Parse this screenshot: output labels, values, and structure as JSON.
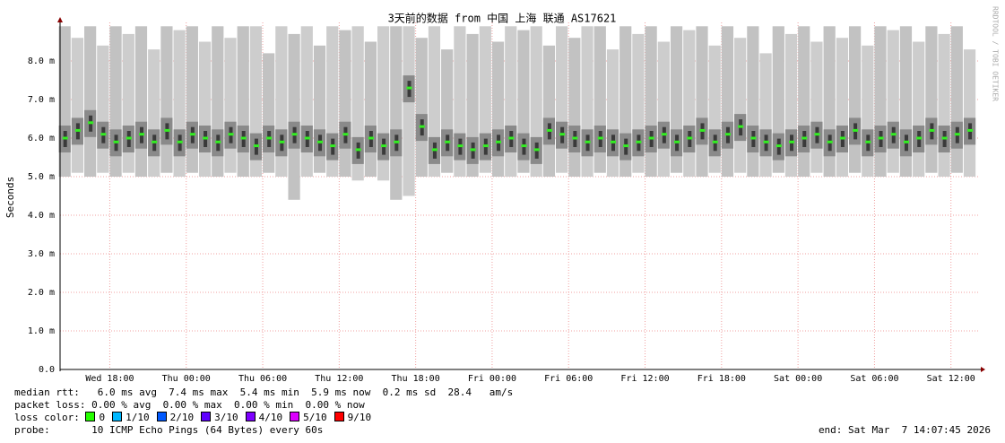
{
  "chart_data": {
    "type": "smoke",
    "title": "3天前的数据 from 中国 上海 联通 AS17621",
    "y_label": "Seconds",
    "watermark": "RRDTOOL / TOBI OETIKER",
    "xlim": [
      14.1,
      86.2
    ],
    "xticks": [
      {
        "value": 18,
        "label": "Wed 18:00"
      },
      {
        "value": 24,
        "label": "Thu 00:00"
      },
      {
        "value": 30,
        "label": "Thu 06:00"
      },
      {
        "value": 36,
        "label": "Thu 12:00"
      },
      {
        "value": 42,
        "label": "Thu 18:00"
      },
      {
        "value": 48,
        "label": "Fri 00:00"
      },
      {
        "value": 54,
        "label": "Fri 06:00"
      },
      {
        "value": 60,
        "label": "Fri 12:00"
      },
      {
        "value": 66,
        "label": "Fri 18:00"
      },
      {
        "value": 72,
        "label": "Sat 00:00"
      },
      {
        "value": 78,
        "label": "Sat 06:00"
      },
      {
        "value": 84,
        "label": "Sat 12:00"
      }
    ],
    "ylim": [
      0,
      9
    ],
    "yticks": [
      {
        "value": 0,
        "label": "0.0"
      },
      {
        "value": 1,
        "label": "1.0 m"
      },
      {
        "value": 2,
        "label": "2.0 m"
      },
      {
        "value": 3,
        "label": "3.0 m"
      },
      {
        "value": 4,
        "label": "4.0 m"
      },
      {
        "value": 5,
        "label": "5.0 m"
      },
      {
        "value": 6,
        "label": "6.0 m"
      },
      {
        "value": 7,
        "label": "7.0 m"
      },
      {
        "value": 8,
        "label": "8.0 m"
      }
    ],
    "grid": true,
    "color": "#33ee22",
    "x": [
      14.5,
      15.5,
      16.5,
      17.5,
      18.5,
      19.5,
      20.5,
      21.5,
      22.5,
      23.5,
      24.5,
      25.5,
      26.5,
      27.5,
      28.5,
      29.5,
      30.5,
      31.5,
      32.5,
      33.5,
      34.5,
      35.5,
      36.5,
      37.5,
      38.5,
      39.5,
      40.5,
      41.5,
      42.5,
      43.5,
      44.5,
      45.5,
      46.5,
      47.5,
      48.5,
      49.5,
      50.5,
      51.5,
      52.5,
      53.5,
      54.5,
      55.5,
      56.5,
      57.5,
      58.5,
      59.5,
      60.5,
      61.5,
      62.5,
      63.5,
      64.5,
      65.5,
      66.5,
      67.5,
      68.5,
      69.5,
      70.5,
      71.5,
      72.5,
      73.5,
      74.5,
      75.5,
      76.5,
      77.5,
      78.5,
      79.5,
      80.5,
      81.5,
      82.5,
      83.5,
      84.5,
      85.5
    ],
    "values": [
      6.0,
      6.2,
      6.4,
      6.1,
      5.9,
      6.0,
      6.1,
      5.9,
      6.2,
      5.9,
      6.1,
      6.0,
      5.9,
      6.1,
      6.0,
      5.8,
      6.0,
      5.9,
      6.1,
      6.0,
      5.9,
      5.8,
      6.1,
      5.7,
      6.0,
      5.8,
      5.9,
      7.3,
      6.3,
      5.7,
      5.9,
      5.8,
      5.7,
      5.8,
      5.9,
      6.0,
      5.8,
      5.7,
      6.2,
      6.1,
      6.0,
      5.9,
      6.0,
      5.9,
      5.8,
      5.9,
      6.0,
      6.1,
      5.9,
      6.0,
      6.2,
      5.9,
      6.1,
      6.3,
      6.0,
      5.9,
      5.8,
      5.9,
      6.0,
      6.1,
      5.9,
      6.0,
      6.2,
      5.9,
      6.0,
      6.1,
      5.9,
      6.0,
      6.2,
      6.0,
      6.1,
      6.2
    ],
    "low": [
      5.0,
      5.1,
      5.0,
      5.1,
      5.0,
      5.1,
      5.0,
      5.0,
      5.1,
      5.0,
      5.1,
      5.0,
      5.0,
      5.1,
      5.0,
      5.0,
      5.1,
      5.0,
      4.4,
      5.0,
      5.1,
      5.0,
      5.0,
      4.9,
      5.0,
      4.9,
      4.4,
      4.5,
      5.0,
      5.0,
      5.1,
      5.0,
      5.0,
      5.1,
      5.0,
      5.0,
      5.1,
      5.0,
      5.0,
      5.1,
      5.0,
      5.0,
      5.1,
      5.0,
      5.0,
      5.1,
      5.0,
      5.0,
      5.1,
      5.0,
      5.0,
      5.1,
      5.0,
      5.1,
      5.0,
      5.0,
      5.1,
      5.0,
      5.0,
      5.1,
      5.0,
      5.0,
      5.1,
      5.0,
      5.0,
      5.1,
      5.0,
      5.0,
      5.1,
      5.0,
      5.1,
      5.0
    ],
    "high": [
      8.9,
      8.6,
      8.9,
      8.4,
      8.9,
      8.7,
      8.9,
      8.3,
      8.9,
      8.8,
      8.9,
      8.5,
      8.9,
      8.6,
      8.9,
      8.9,
      8.2,
      8.9,
      8.7,
      8.9,
      8.4,
      8.9,
      8.8,
      8.9,
      8.5,
      8.9,
      8.9,
      8.9,
      8.6,
      8.9,
      8.3,
      8.9,
      8.7,
      8.9,
      8.5,
      8.9,
      8.8,
      8.9,
      8.4,
      8.9,
      8.6,
      8.9,
      8.9,
      8.3,
      8.9,
      8.7,
      8.9,
      8.5,
      8.9,
      8.8,
      8.9,
      8.4,
      8.9,
      8.6,
      8.9,
      8.2,
      8.9,
      8.7,
      8.9,
      8.5,
      8.9,
      8.6,
      8.9,
      8.4,
      8.9,
      8.8,
      8.9,
      8.5,
      8.9,
      8.7,
      8.9,
      8.3
    ],
    "footer": {
      "median_rtt": "median rtt:   6.0 ms avg  7.4 ms max  5.4 ms min  5.9 ms now  0.2 ms sd  28.4   am/s",
      "packet_loss": "packet loss: 0.00 % avg  0.00 % max  0.00 % min  0.00 % now",
      "loss_color_label": "loss color:",
      "loss_colors": [
        {
          "label": "0",
          "color": "#26ff00"
        },
        {
          "label": "1/10",
          "color": "#00b8ff"
        },
        {
          "label": "2/10",
          "color": "#0059ff"
        },
        {
          "label": "3/10",
          "color": "#5e00ff"
        },
        {
          "label": "4/10",
          "color": "#7e00ff"
        },
        {
          "label": "5/10",
          "color": "#dd00ff"
        },
        {
          "label": "9/10",
          "color": "#ff0000"
        }
      ],
      "probe": "probe:       10 ICMP Echo Pings (64 Bytes) every 60s",
      "end": "end: Sat Mar  7 14:07:45 2026"
    }
  }
}
